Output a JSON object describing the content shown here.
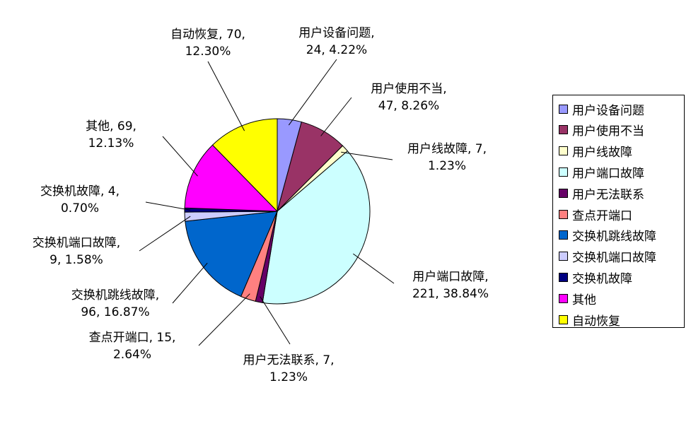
{
  "chart_data": {
    "type": "pie",
    "title": "",
    "slices": [
      {
        "name": "用户设备问题",
        "value": 24,
        "percent": "4.22%",
        "color": "#9999ff",
        "label_line1": "用户设备问题,",
        "label_line2": "24, 4.22%"
      },
      {
        "name": "用户使用不当",
        "value": 47,
        "percent": "8.26%",
        "color": "#993366",
        "label_line1": "用户使用不当,",
        "label_line2": "47, 8.26%"
      },
      {
        "name": "用户线故障",
        "value": 7,
        "percent": "1.23%",
        "color": "#ffffcc",
        "label_line1": "用户线故障, 7,",
        "label_line2": "1.23%"
      },
      {
        "name": "用户端口故障",
        "value": 221,
        "percent": "38.84%",
        "color": "#ccffff",
        "label_line1": "用户端口故障,",
        "label_line2": "221, 38.84%"
      },
      {
        "name": "用户无法联系",
        "value": 7,
        "percent": "1.23%",
        "color": "#660066",
        "label_line1": "用户无法联系, 7,",
        "label_line2": "1.23%"
      },
      {
        "name": "查点开端口",
        "value": 15,
        "percent": "2.64%",
        "color": "#ff8080",
        "label_line1": "查点开端口, 15,",
        "label_line2": "2.64%"
      },
      {
        "name": "交换机跳线故障",
        "value": 96,
        "percent": "16.87%",
        "color": "#0066cc",
        "label_line1": "交换机跳线故障,",
        "label_line2": "96, 16.87%"
      },
      {
        "name": "交换机端口故障",
        "value": 9,
        "percent": "1.58%",
        "color": "#ccccff",
        "label_line1": "交换机端口故障,",
        "label_line2": "9, 1.58%"
      },
      {
        "name": "交换机故障",
        "value": 4,
        "percent": "0.70%",
        "color": "#000080",
        "label_line1": "交换机故障, 4,",
        "label_line2": "0.70%"
      },
      {
        "name": "其他",
        "value": 69,
        "percent": "12.13%",
        "color": "#ff00ff",
        "label_line1": "其他, 69,",
        "label_line2": "12.13%"
      },
      {
        "name": "自动恢复",
        "value": 70,
        "percent": "12.30%",
        "color": "#ffff00",
        "label_line1": "自动恢复, 70,",
        "label_line2": "12.30%"
      }
    ],
    "legend_position": "right"
  }
}
